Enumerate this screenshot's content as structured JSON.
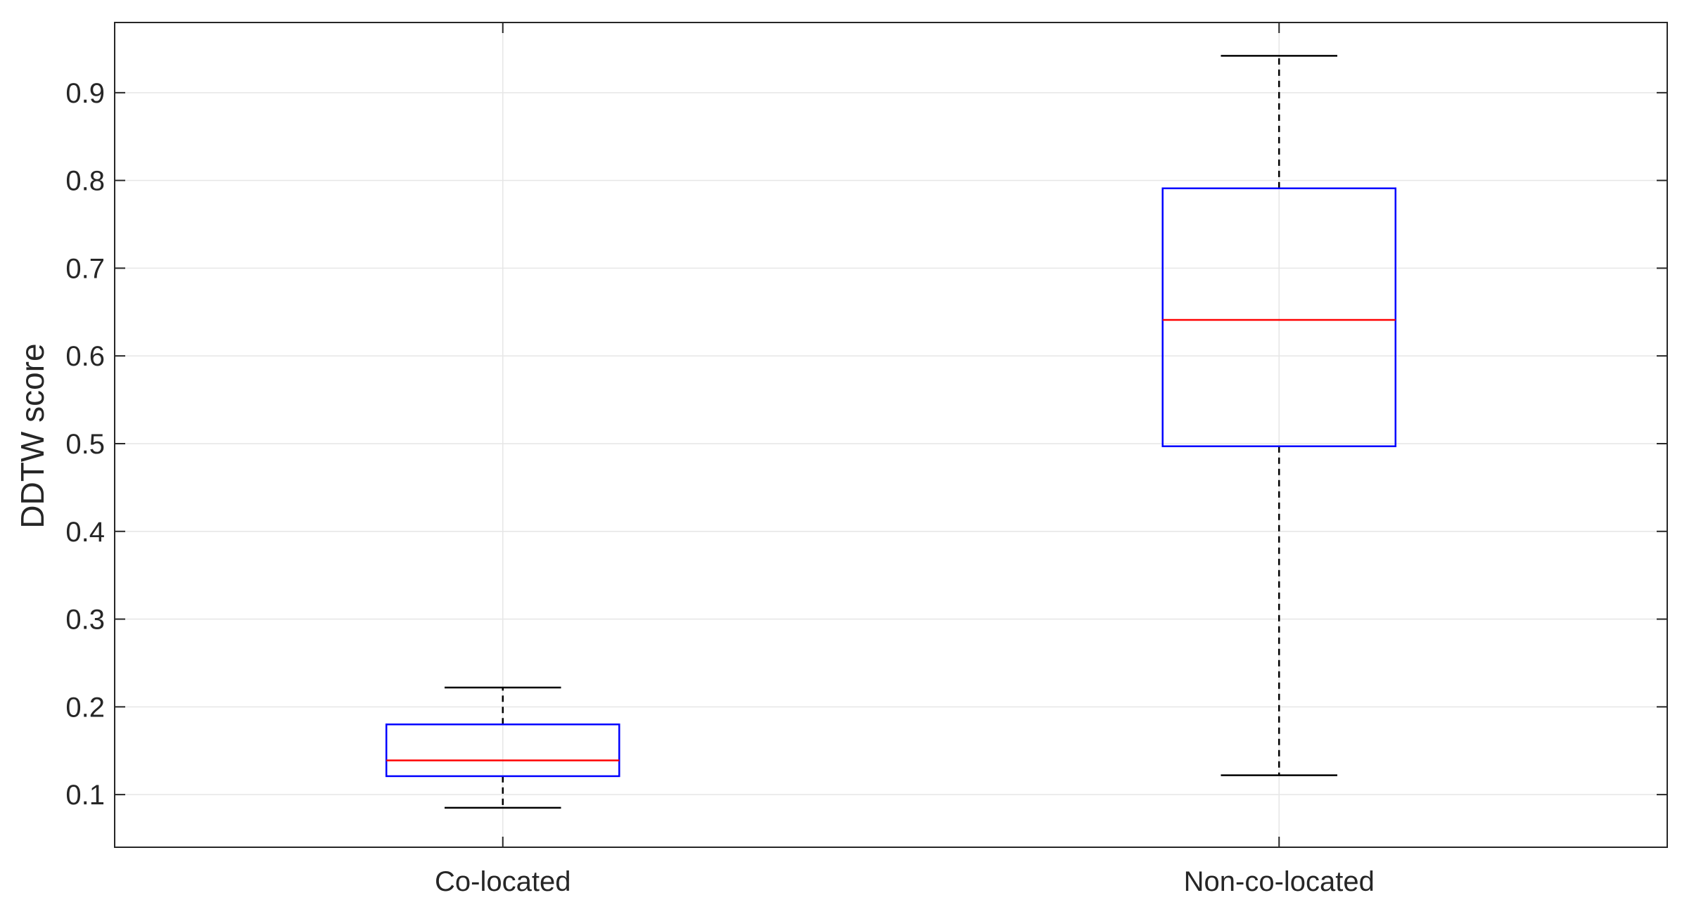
{
  "chart_data": {
    "type": "box",
    "title": "",
    "xlabel": "",
    "ylabel": "DDTW score",
    "ylim": [
      0.04,
      0.98
    ],
    "yticks": [
      0.1,
      0.2,
      0.3,
      0.4,
      0.5,
      0.6,
      0.7,
      0.8,
      0.9
    ],
    "ytick_labels": [
      "0.1",
      "0.2",
      "0.3",
      "0.4",
      "0.5",
      "0.6",
      "0.7",
      "0.8",
      "0.9"
    ],
    "grid": true,
    "categories": [
      "Co-located",
      "Non-co-located"
    ],
    "boxes": [
      {
        "category": "Co-located",
        "whisker_low": 0.085,
        "q1": 0.121,
        "median": 0.139,
        "q3": 0.18,
        "whisker_high": 0.222
      },
      {
        "category": "Non-co-located",
        "whisker_low": 0.122,
        "q1": 0.497,
        "median": 0.641,
        "q3": 0.791,
        "whisker_high": 0.942
      }
    ],
    "colors": {
      "box": "#0000ff",
      "median": "#ff0000",
      "whisker": "#000000",
      "grid": "#e6e6e6",
      "axis": "#262626"
    }
  }
}
